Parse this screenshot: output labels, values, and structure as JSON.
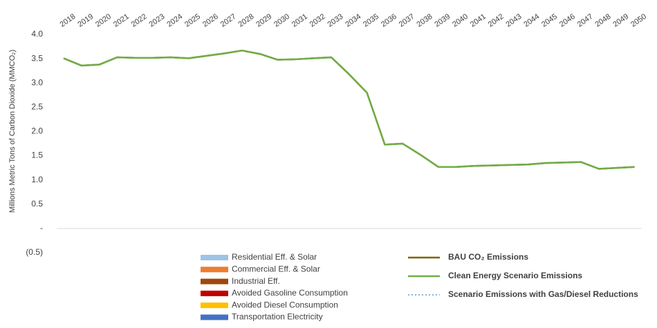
{
  "chart_data": {
    "type": "line",
    "y_label": "Millions Metric Tons of Carbon Dioxide (MMCO₂)",
    "categories": [
      "2018",
      "2019",
      "2020",
      "2021",
      "2022",
      "2023",
      "2024",
      "2025",
      "2026",
      "2027",
      "2028",
      "2029",
      "2030",
      "2031",
      "2032",
      "2033",
      "2034",
      "2035",
      "2036",
      "2037",
      "2038",
      "2039",
      "2040",
      "2041",
      "2042",
      "2043",
      "2044",
      "2045",
      "2046",
      "2047",
      "2048",
      "2049",
      "2050"
    ],
    "ylim": [
      -0.5,
      4
    ],
    "yticks": [
      {
        "value": 4,
        "label": "4.0"
      },
      3.5,
      {
        "value": 3,
        "label": "3.0"
      },
      2.5,
      {
        "value": 2,
        "label": "2.0"
      },
      1.5,
      {
        "value": 1,
        "label": "1.0"
      },
      0.5,
      {
        "value": 0,
        "label": "-"
      },
      {
        "value": -0.5,
        "label": "(0.5)"
      }
    ],
    "area_series": [
      {
        "name": "Residential Eff. & Solar",
        "color": "#9dc3e6",
        "values": [
          0,
          0,
          0,
          0,
          0,
          0,
          0,
          0,
          0,
          0,
          0,
          0,
          0,
          0,
          0,
          0,
          0,
          0,
          0,
          0,
          0,
          0,
          0,
          0,
          0,
          0,
          0,
          0,
          0,
          0,
          0,
          0,
          0
        ]
      },
      {
        "name": "Commercial Eff. & Solar",
        "color": "#ed7d31",
        "values": [
          0,
          0,
          0,
          0,
          0,
          0,
          0,
          0,
          0,
          0,
          0,
          0,
          0,
          0,
          0,
          0,
          0,
          0,
          0,
          0,
          0,
          0,
          0,
          0,
          0,
          0,
          0,
          0,
          0,
          0,
          0,
          0,
          0
        ]
      },
      {
        "name": "Industrial Eff.",
        "color": "#9e480e",
        "values": [
          0,
          0,
          0,
          0,
          0,
          0,
          0,
          0,
          0,
          0,
          0,
          0,
          0,
          0,
          0,
          0,
          0,
          0,
          0,
          0,
          0,
          0,
          0,
          0,
          0,
          0,
          0,
          0,
          0,
          0,
          0,
          0,
          0
        ]
      },
      {
        "name": "Avoided Gasoline Consumption",
        "color": "#c00000",
        "values": [
          0,
          0,
          0,
          0,
          0,
          0,
          0,
          0,
          0,
          0,
          0,
          0,
          0,
          0,
          0,
          0,
          0,
          0,
          0,
          0,
          0,
          0,
          0,
          0,
          0,
          0,
          0,
          0,
          0,
          0,
          0,
          0,
          0
        ]
      },
      {
        "name": "Avoided Diesel Consumption",
        "color": "#ffc000",
        "values": [
          0,
          0,
          0,
          0,
          0,
          0,
          0,
          0,
          0,
          0,
          0,
          0,
          0,
          0,
          0,
          0,
          0,
          0,
          0,
          0,
          0,
          0,
          0,
          0,
          0,
          0,
          0,
          0,
          0,
          0,
          0,
          0,
          0
        ]
      },
      {
        "name": "Transportation Electricity",
        "color": "#4472c4",
        "values": [
          0,
          0,
          0,
          0,
          0,
          0,
          0,
          0,
          0,
          0,
          0,
          0,
          0,
          0,
          0,
          0,
          0,
          0,
          0,
          0,
          0,
          0,
          0,
          0,
          0,
          0,
          0,
          0,
          0,
          0,
          0,
          0,
          0
        ]
      }
    ],
    "series": [
      {
        "name": "BAU CO₂ Emissions",
        "color": "#7f6000",
        "dash": false,
        "values": [
          3.51,
          3.36,
          3.38,
          3.53,
          3.52,
          3.52,
          3.53,
          3.51,
          3.56,
          3.61,
          3.67,
          3.6,
          3.48,
          3.49,
          3.51,
          3.53,
          3.18,
          2.8,
          1.73,
          1.75,
          1.52,
          1.27,
          1.27,
          1.29,
          1.3,
          1.31,
          1.32,
          1.35,
          1.36,
          1.37,
          1.23,
          1.25,
          1.27
        ]
      },
      {
        "name": "Scenario Emissions with Gas/Diesel Reductions",
        "color": "#5b9bd5",
        "dash": true,
        "values": [
          3.51,
          3.36,
          3.38,
          3.53,
          3.52,
          3.52,
          3.53,
          3.51,
          3.56,
          3.61,
          3.67,
          3.6,
          3.48,
          3.49,
          3.51,
          3.53,
          3.18,
          2.8,
          1.73,
          1.75,
          1.52,
          1.27,
          1.27,
          1.29,
          1.3,
          1.31,
          1.32,
          1.35,
          1.36,
          1.37,
          1.23,
          1.25,
          1.27
        ]
      },
      {
        "name": "Clean Energy Scenario Emissions",
        "color": "#70ad47",
        "dash": false,
        "values": [
          3.51,
          3.36,
          3.38,
          3.53,
          3.52,
          3.52,
          3.53,
          3.51,
          3.56,
          3.61,
          3.67,
          3.6,
          3.48,
          3.49,
          3.51,
          3.53,
          3.18,
          2.8,
          1.73,
          1.75,
          1.52,
          1.27,
          1.27,
          1.29,
          1.3,
          1.31,
          1.32,
          1.35,
          1.36,
          1.37,
          1.23,
          1.25,
          1.27
        ]
      }
    ]
  }
}
